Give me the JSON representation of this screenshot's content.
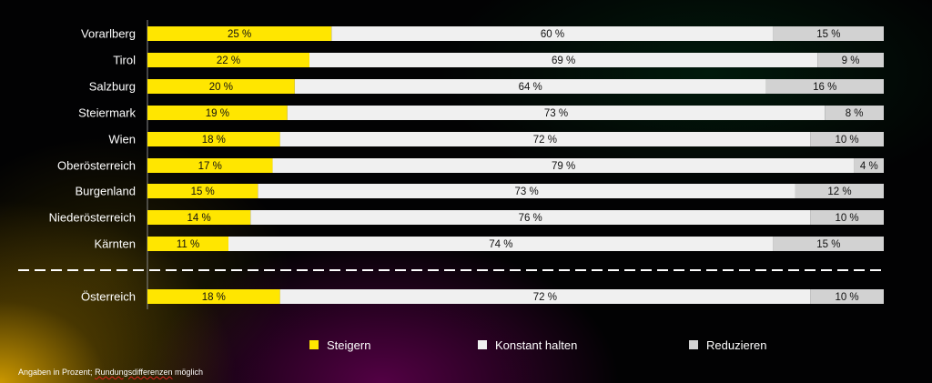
{
  "chart_data": {
    "type": "bar",
    "orientation": "horizontal",
    "stacked": true,
    "categories": [
      "Vorarlberg",
      "Tirol",
      "Salzburg",
      "Steiermark",
      "Wien",
      "Oberösterreich",
      "Burgenland",
      "Niederösterreich",
      "Kärnten",
      "Österreich"
    ],
    "series": [
      {
        "name": "Steigern",
        "color": "#FFE600",
        "values": [
          25,
          22,
          20,
          19,
          18,
          17,
          15,
          14,
          11,
          18
        ]
      },
      {
        "name": "Konstant halten",
        "color": "#F0F0F0",
        "values": [
          60,
          69,
          64,
          73,
          72,
          79,
          73,
          76,
          74,
          72
        ]
      },
      {
        "name": "Reduzieren",
        "color": "#D2D2D2",
        "values": [
          15,
          9,
          16,
          8,
          10,
          4,
          12,
          10,
          15,
          10
        ]
      }
    ],
    "value_suffix": " %",
    "xlim": [
      0,
      100
    ],
    "legend_position": "bottom",
    "separator_before": "Österreich"
  },
  "footnote": {
    "text1": "Angaben in Prozent; ",
    "text2": "Rundungsdifferenzen",
    "text3": " möglich"
  }
}
